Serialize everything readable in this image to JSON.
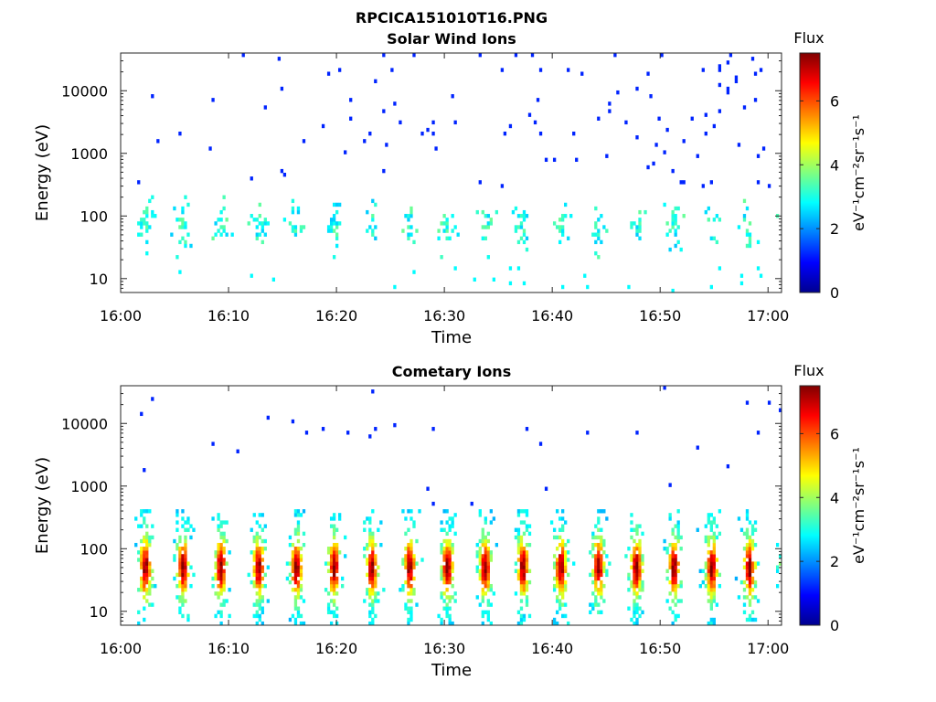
{
  "figure_title": "RPCICA151010T16.PNG",
  "chart_data": [
    {
      "type": "heatmap",
      "title": "Solar Wind Ions",
      "xlabel": "Time",
      "ylabel": "Energy (eV)",
      "x_ticks": [
        "16:00",
        "16:10",
        "16:20",
        "16:30",
        "16:40",
        "16:50",
        "17:00"
      ],
      "y_ticks": [
        "10",
        "100",
        "1000",
        "10000"
      ],
      "ylim": [
        6,
        40000
      ],
      "y_scale": "log",
      "colorbar": {
        "title": "Flux",
        "unit_label": "eV⁻¹cm⁻²sr⁻¹s⁻¹",
        "ticks": [
          "0",
          "2",
          "4",
          "6"
        ],
        "range": [
          0,
          7.5
        ],
        "colormap": "jet"
      },
      "description_of_content": "Sparse scattered blue dots at high energies; cyan/green bands near 30–200 eV in periodic bursts about every 3.5 minutes"
    },
    {
      "type": "heatmap",
      "title": "Cometary Ions",
      "xlabel": "Time",
      "ylabel": "Energy (eV)",
      "x_ticks": [
        "16:00",
        "16:10",
        "16:20",
        "16:30",
        "16:40",
        "16:50",
        "17:00"
      ],
      "y_ticks": [
        "10",
        "100",
        "1000",
        "10000"
      ],
      "ylim": [
        6,
        40000
      ],
      "y_scale": "log",
      "colorbar": {
        "title": "Flux",
        "unit_label": "eV⁻¹cm⁻²sr⁻¹s⁻¹",
        "ticks": [
          "0",
          "2",
          "4",
          "6"
        ],
        "range": [
          0,
          7.5
        ],
        "colormap": "jet"
      },
      "description_of_content": "Periodic vertical bursts every ~3.5 minutes, peak flux (orange/red) near 40–60 eV, extending 6–400 eV, sparse blue dots at higher energies"
    }
  ]
}
